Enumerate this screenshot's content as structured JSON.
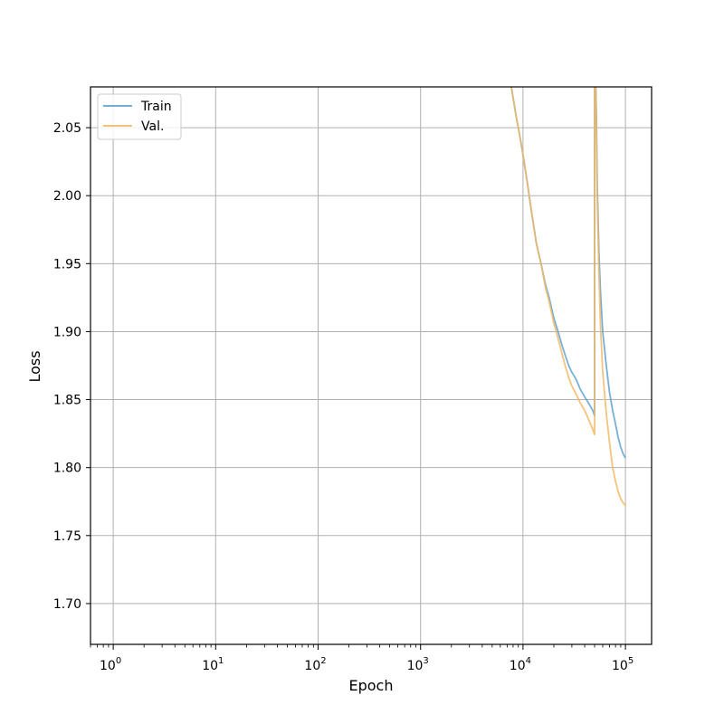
{
  "chart_data": {
    "type": "line",
    "title": "",
    "xlabel": "Epoch",
    "ylabel": "Loss",
    "x_scale": "log",
    "xlim": [
      0.6,
      180000
    ],
    "ylim": [
      1.67,
      2.08
    ],
    "grid": true,
    "legend_position": "upper-left",
    "x_ticks": [
      {
        "value": 1,
        "base": "10",
        "exp": "0"
      },
      {
        "value": 10,
        "base": "10",
        "exp": "1"
      },
      {
        "value": 100,
        "base": "10",
        "exp": "2"
      },
      {
        "value": 1000,
        "base": "10",
        "exp": "3"
      },
      {
        "value": 10000,
        "base": "10",
        "exp": "4"
      },
      {
        "value": 100000,
        "base": "10",
        "exp": "5"
      }
    ],
    "y_ticks": [
      {
        "value": 1.7,
        "label": "1.70"
      },
      {
        "value": 1.75,
        "label": "1.75"
      },
      {
        "value": 1.8,
        "label": "1.80"
      },
      {
        "value": 1.85,
        "label": "1.85"
      },
      {
        "value": 1.9,
        "label": "1.90"
      },
      {
        "value": 1.95,
        "label": "1.95"
      },
      {
        "value": 2.0,
        "label": "2.00"
      },
      {
        "value": 2.05,
        "label": "2.05"
      }
    ],
    "series": [
      {
        "name": "Train",
        "color": "#5fa2d0",
        "x": [
          7500,
          8500,
          9500,
          10000,
          11000,
          12000,
          13500,
          15000,
          16500,
          18000,
          20000,
          22000,
          24000,
          26000,
          28000,
          30000,
          33000,
          36000,
          40000,
          44000,
          48000,
          50000,
          50000,
          51000,
          52000,
          53000,
          55000,
          57000,
          60000,
          65000,
          70000,
          75000,
          80000,
          85000,
          90000,
          95000,
          100000
        ],
        "y": [
          2.085,
          2.06,
          2.04,
          2.03,
          2.01,
          1.99,
          1.965,
          1.95,
          1.935,
          1.925,
          1.91,
          1.9,
          1.89,
          1.882,
          1.875,
          1.87,
          1.865,
          1.858,
          1.852,
          1.847,
          1.842,
          1.838,
          2.09,
          2.09,
          2.06,
          2.01,
          1.96,
          1.93,
          1.9,
          1.875,
          1.855,
          1.842,
          1.832,
          1.822,
          1.815,
          1.81,
          1.807
        ]
      },
      {
        "name": "Val.",
        "color": "#f2b865",
        "x": [
          7500,
          8500,
          9500,
          10000,
          11000,
          12000,
          13500,
          15000,
          16500,
          18000,
          20000,
          22000,
          24000,
          26000,
          28000,
          30000,
          33000,
          36000,
          40000,
          44000,
          48000,
          50000,
          50000,
          51000,
          52000,
          53000,
          55000,
          57000,
          60000,
          65000,
          70000,
          75000,
          80000,
          85000,
          90000,
          95000,
          100000
        ],
        "y": [
          2.085,
          2.06,
          2.04,
          2.03,
          2.01,
          1.99,
          1.965,
          1.95,
          1.933,
          1.922,
          1.906,
          1.895,
          1.884,
          1.874,
          1.866,
          1.86,
          1.854,
          1.848,
          1.842,
          1.835,
          1.828,
          1.824,
          2.09,
          2.09,
          2.05,
          2.0,
          1.945,
          1.905,
          1.87,
          1.84,
          1.818,
          1.8,
          1.79,
          1.782,
          1.777,
          1.774,
          1.772
        ]
      }
    ]
  }
}
